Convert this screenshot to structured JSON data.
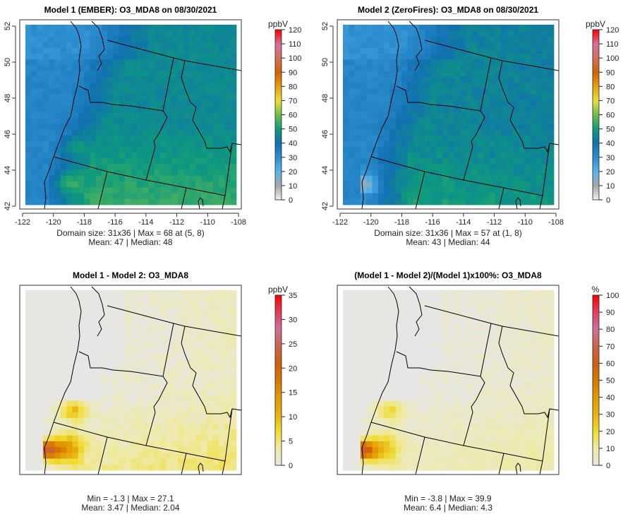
{
  "chart_data": [
    {
      "type": "heatmap",
      "title": "Model 1 (EMBER): O3_MDA8 on 08/30/2021",
      "unit": "ppbV",
      "palette": "ozone",
      "field": "model1",
      "colorbar_ticks": [
        "0",
        "10",
        "20",
        "30",
        "40",
        "50",
        "60",
        "70",
        "80",
        "90",
        "100",
        "110",
        "120"
      ],
      "colorbar_range": [
        0,
        120
      ],
      "xticks": [
        "-122",
        "-120",
        "-118",
        "-116",
        "-114",
        "-112",
        "-110",
        "-108"
      ],
      "yticks": [
        "42",
        "44",
        "46",
        "48",
        "50",
        "52"
      ],
      "xlim": [
        -122,
        -108
      ],
      "ylim": [
        42,
        52
      ],
      "stats_line1": "Domain size: 31x36 | Max = 68 at (5, 8)",
      "stats_line2": "Mean: 47 |  Median: 48",
      "max": 68,
      "mean": 47,
      "median": 48
    },
    {
      "type": "heatmap",
      "title": "Model 2 (ZeroFires): O3_MDA8 on 08/30/2021",
      "unit": "ppbV",
      "palette": "ozone",
      "field": "model2",
      "colorbar_ticks": [
        "0",
        "10",
        "20",
        "30",
        "40",
        "50",
        "60",
        "70",
        "80",
        "90",
        "100",
        "110",
        "120"
      ],
      "colorbar_range": [
        0,
        120
      ],
      "xticks": [
        "-122",
        "-120",
        "-118",
        "-116",
        "-114",
        "-112",
        "-110",
        "-108"
      ],
      "yticks": [
        "42",
        "44",
        "46",
        "48",
        "50",
        "52"
      ],
      "xlim": [
        -122,
        -108
      ],
      "ylim": [
        42,
        52
      ],
      "stats_line1": "Domain size: 31x36 | Max = 57 at (1, 8)",
      "stats_line2": "Mean: 43 |  Median: 44",
      "max": 57,
      "mean": 43,
      "median": 44
    },
    {
      "type": "heatmap",
      "title": "Model 1 - Model 2: O3_MDA8",
      "unit": "ppbV",
      "palette": "diff",
      "field": "diff",
      "colorbar_ticks": [
        "0",
        "5",
        "10",
        "15",
        "20",
        "25",
        "30",
        "35"
      ],
      "colorbar_range": [
        0,
        35
      ],
      "stats_line1": "Min = -1.3 | Max = 27.1",
      "stats_line2": "Mean: 3.47 |  Median: 2.04",
      "min": -1.3,
      "max": 27.1,
      "mean": 3.47,
      "median": 2.04
    },
    {
      "type": "heatmap",
      "title": "(Model 1 - Model 2)/(Model 1)x100%: O3_MDA8",
      "unit": "%",
      "palette": "diff",
      "field": "pct",
      "colorbar_ticks": [
        "0",
        "10",
        "20",
        "30",
        "40",
        "50",
        "60",
        "70",
        "80",
        "90",
        "100"
      ],
      "colorbar_range": [
        0,
        100
      ],
      "stats_line1": "Min = -3.8 | Max = 39.9",
      "stats_line2": "Mean: 6.4 |  Median: 4.3",
      "min": -3.8,
      "max": 39.9,
      "mean": 6.4,
      "median": 4.3
    }
  ],
  "colors": {
    "ozone": [
      [
        "0",
        "#f2f2f2"
      ],
      [
        "10",
        "#a6a6a6"
      ],
      [
        "20",
        "#5ab4ea"
      ],
      [
        "30",
        "#2e8fd0"
      ],
      [
        "40",
        "#1170b0"
      ],
      [
        "50",
        "#0e9a7e"
      ],
      [
        "60",
        "#6cbd4c"
      ],
      [
        "70",
        "#e9df3a"
      ],
      [
        "80",
        "#e8a012"
      ],
      [
        "90",
        "#d26200"
      ],
      [
        "100",
        "#d0705a"
      ],
      [
        "110",
        "#d8719a"
      ],
      [
        "120",
        "#ff0000"
      ]
    ],
    "diff": [
      [
        "0",
        "#e6e6e6"
      ],
      [
        "0.1",
        "#efeaa8"
      ],
      [
        "0.2",
        "#f0dc30"
      ],
      [
        "0.3",
        "#e8b010"
      ],
      [
        "0.4",
        "#e29a00"
      ],
      [
        "0.5",
        "#d87800"
      ],
      [
        "0.6",
        "#d05e10"
      ],
      [
        "0.7",
        "#cc6448"
      ],
      [
        "0.8",
        "#d0709c"
      ],
      [
        "0.9",
        "#e04060"
      ],
      [
        "1",
        "#ff0000"
      ]
    ]
  }
}
